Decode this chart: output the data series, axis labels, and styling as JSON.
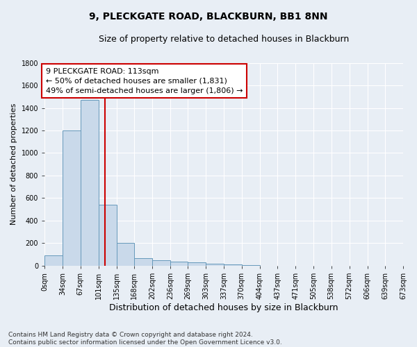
{
  "title1": "9, PLECKGATE ROAD, BLACKBURN, BB1 8NN",
  "title2": "Size of property relative to detached houses in Blackburn",
  "xlabel": "Distribution of detached houses by size in Blackburn",
  "ylabel": "Number of detached properties",
  "bar_values": [
    90,
    1200,
    1470,
    540,
    205,
    65,
    48,
    35,
    28,
    15,
    10,
    5,
    0,
    0,
    0,
    0,
    0,
    0,
    0,
    0
  ],
  "bin_edges": [
    0,
    34,
    67,
    101,
    135,
    168,
    202,
    236,
    269,
    303,
    337,
    370,
    404,
    437,
    471,
    505,
    538,
    572,
    606,
    639,
    673
  ],
  "tick_labels": [
    "0sqm",
    "34sqm",
    "67sqm",
    "101sqm",
    "135sqm",
    "168sqm",
    "202sqm",
    "236sqm",
    "269sqm",
    "303sqm",
    "337sqm",
    "370sqm",
    "404sqm",
    "437sqm",
    "471sqm",
    "505sqm",
    "538sqm",
    "572sqm",
    "606sqm",
    "639sqm",
    "673sqm"
  ],
  "bar_color": "#c9d9ea",
  "bar_edgecolor": "#6699bb",
  "vline_x": 113,
  "vline_color": "#cc0000",
  "ylim_max": 1800,
  "yticks": [
    0,
    200,
    400,
    600,
    800,
    1000,
    1200,
    1400,
    1600,
    1800
  ],
  "ann_line1": "9 PLECKGATE ROAD: 113sqm",
  "ann_line2": "← 50% of detached houses are smaller (1,831)",
  "ann_line3": "49% of semi-detached houses are larger (1,806) →",
  "footer_line1": "Contains HM Land Registry data © Crown copyright and database right 2024.",
  "footer_line2": "Contains public sector information licensed under the Open Government Licence v3.0.",
  "background_color": "#e8eef5",
  "grid_color": "#ffffff",
  "title1_fontsize": 10,
  "title2_fontsize": 9,
  "xlabel_fontsize": 9,
  "ylabel_fontsize": 8,
  "tick_fontsize": 7,
  "annot_fontsize": 8,
  "footer_fontsize": 6.5
}
